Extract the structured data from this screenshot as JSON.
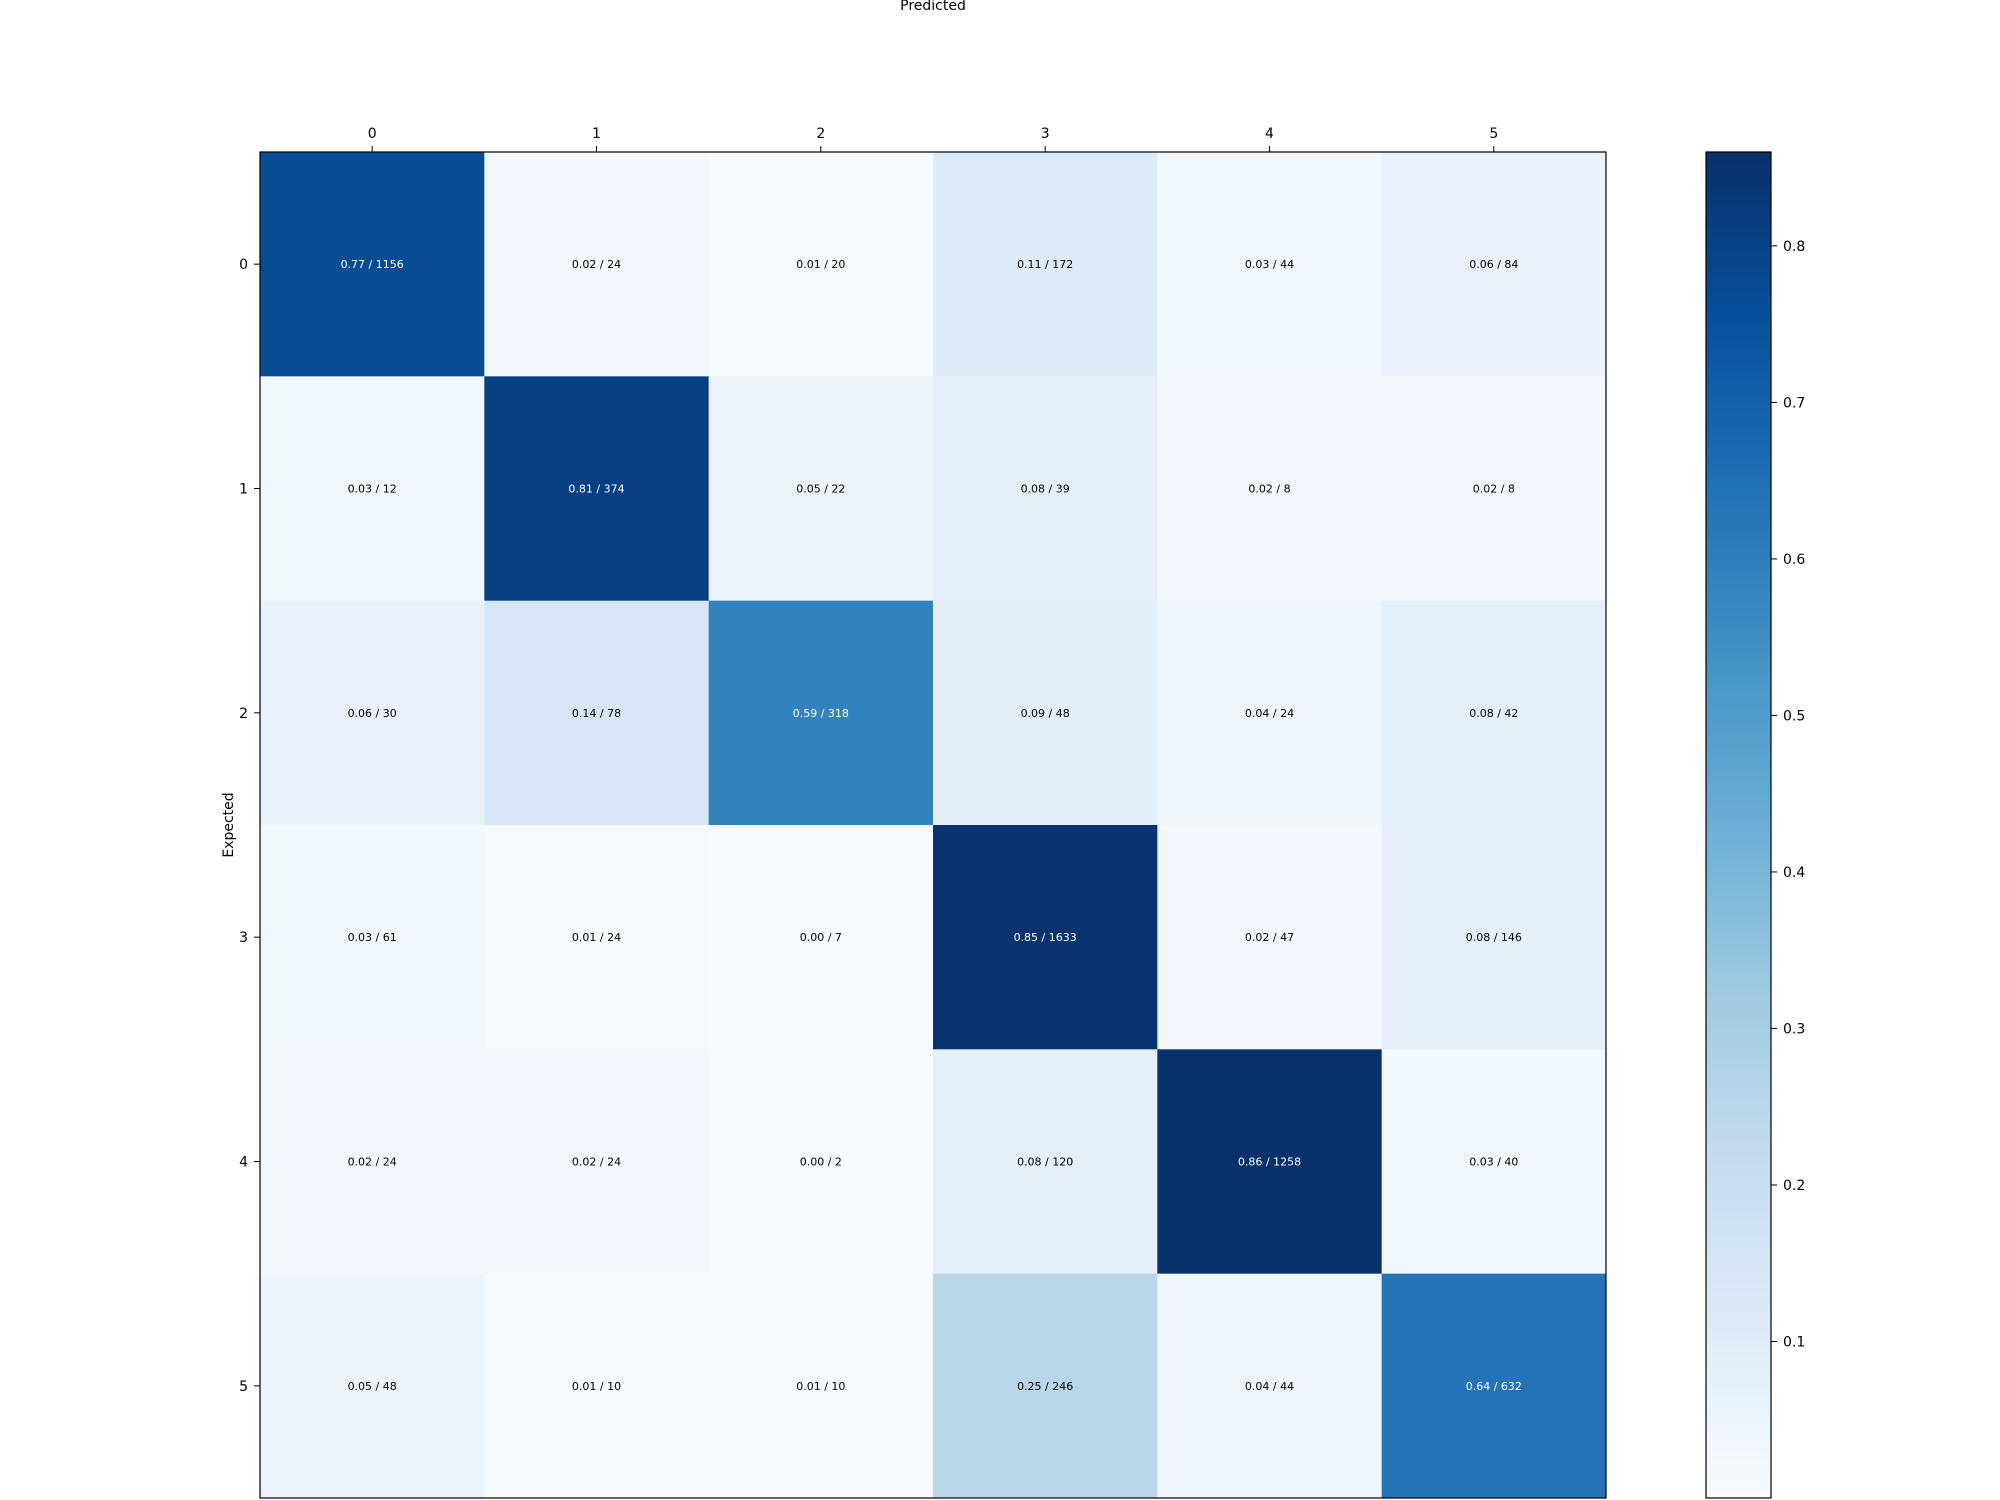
{
  "chart_data": {
    "type": "heatmap",
    "title": "",
    "xlabel": "Predicted",
    "ylabel": "Expected",
    "x_categories": [
      "0",
      "1",
      "2",
      "3",
      "4",
      "5"
    ],
    "y_categories": [
      "0",
      "1",
      "2",
      "3",
      "4",
      "5"
    ],
    "values": [
      [
        0.77,
        0.02,
        0.01,
        0.11,
        0.03,
        0.06
      ],
      [
        0.03,
        0.81,
        0.05,
        0.08,
        0.02,
        0.02
      ],
      [
        0.06,
        0.14,
        0.59,
        0.09,
        0.04,
        0.08
      ],
      [
        0.03,
        0.01,
        0.0,
        0.85,
        0.02,
        0.08
      ],
      [
        0.02,
        0.02,
        0.0,
        0.08,
        0.86,
        0.03
      ],
      [
        0.05,
        0.01,
        0.01,
        0.25,
        0.04,
        0.64
      ]
    ],
    "counts": [
      [
        1156,
        24,
        20,
        172,
        44,
        84
      ],
      [
        12,
        374,
        22,
        39,
        8,
        8
      ],
      [
        30,
        78,
        318,
        48,
        24,
        42
      ],
      [
        61,
        24,
        7,
        1633,
        47,
        146
      ],
      [
        24,
        24,
        2,
        120,
        1258,
        40
      ],
      [
        48,
        10,
        10,
        246,
        44,
        632
      ]
    ],
    "cell_labels": [
      [
        "0.77 / 1156",
        "0.02 / 24",
        "0.01 / 20",
        "0.11 / 172",
        "0.03 / 44",
        "0.06 / 84"
      ],
      [
        "0.03 / 12",
        "0.81 / 374",
        "0.05 / 22",
        "0.08 / 39",
        "0.02 / 8",
        "0.02 / 8"
      ],
      [
        "0.06 / 30",
        "0.14 / 78",
        "0.59 / 318",
        "0.09 / 48",
        "0.04 / 24",
        "0.08 / 42"
      ],
      [
        "0.03 / 61",
        "0.01 / 24",
        "0.00 / 7",
        "0.85 / 1633",
        "0.02 / 47",
        "0.08 / 146"
      ],
      [
        "0.02 / 24",
        "0.02 / 24",
        "0.00 / 2",
        "0.08 / 120",
        "0.86 / 1258",
        "0.03 / 40"
      ],
      [
        "0.05 / 48",
        "0.01 / 10",
        "0.01 / 10",
        "0.25 / 246",
        "0.04 / 44",
        "0.64 / 632"
      ]
    ],
    "x_tick_position": "top",
    "colormap": "Blues",
    "colorbar": {
      "range": [
        0.0,
        0.86
      ],
      "ticks": [
        0.1,
        0.2,
        0.3,
        0.4,
        0.5,
        0.6,
        0.7,
        0.8
      ],
      "tick_labels": [
        "0.1",
        "0.2",
        "0.3",
        "0.4",
        "0.5",
        "0.6",
        "0.7",
        "0.8"
      ],
      "placement": "right"
    },
    "grid": false
  }
}
